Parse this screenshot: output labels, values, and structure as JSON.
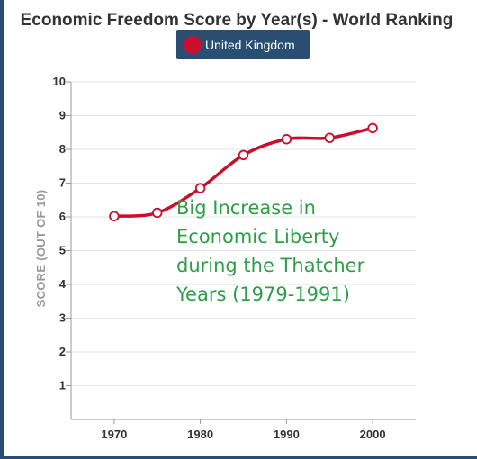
{
  "chart_data": {
    "type": "line",
    "title": "Economic Freedom Score by Year(s) - World Ranking",
    "ylabel": "SCORE (OUT OF 10)",
    "xlabel": "",
    "ylim": [
      0,
      10
    ],
    "xlim": [
      1965,
      2005
    ],
    "x_ticks": [
      1970,
      1980,
      1990,
      2000
    ],
    "y_ticks": [
      1,
      2,
      3,
      4,
      5,
      6,
      7,
      8,
      9,
      10
    ],
    "grid": true,
    "legend_position": "top-center",
    "series": [
      {
        "name": "United Kingdom",
        "color": "#c8102e",
        "x": [
          1970,
          1975,
          1980,
          1985,
          1990,
          1995,
          2000
        ],
        "y": [
          6.02,
          6.12,
          6.85,
          7.83,
          8.3,
          8.34,
          8.63
        ]
      }
    ],
    "annotation": {
      "lines": [
        "Big Increase in",
        "Economic Liberty",
        "during the Thatcher",
        "Years (1979-1991)"
      ],
      "color": "#2f9e48"
    }
  }
}
